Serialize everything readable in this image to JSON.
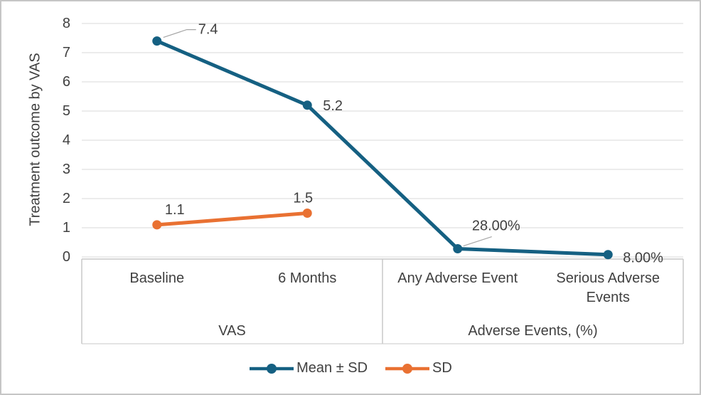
{
  "figure": {
    "background": "#ffffff",
    "border_color": "#c6c6c6"
  },
  "chart_data": {
    "type": "line",
    "title": "",
    "y_axis": {
      "label": "Treatment outcome by VAS",
      "min": 0,
      "max": 8,
      "tick_interval": 1,
      "ticks": [
        0,
        1,
        2,
        3,
        4,
        5,
        6,
        7,
        8
      ]
    },
    "x_axis": {
      "categories": [
        "Baseline",
        "6 Months",
        "Any Adverse Event",
        "Serious Adverse Events"
      ],
      "groups": [
        {
          "label": "VAS",
          "span": [
            0,
            1
          ]
        },
        {
          "label": "Adverse Events, (%)",
          "span": [
            2,
            3
          ]
        }
      ]
    },
    "series": [
      {
        "name": "Mean ± SD",
        "color": "#156082",
        "values": [
          7.4,
          5.2,
          0.28,
          0.08
        ],
        "point_labels": [
          "7.4",
          "5.2",
          "28.00%",
          "8.00%"
        ]
      },
      {
        "name": "SD",
        "color": "#E97132",
        "values": [
          1.1,
          1.5,
          null,
          null
        ],
        "point_labels": [
          "1.1",
          "1.5",
          null,
          null
        ]
      }
    ],
    "grid": "horizontal",
    "gridline_color": "#d9d9d9",
    "axis_box_color": "#c9c9c9",
    "leader_line_color": "#a6a6a6",
    "text_color": "#404040",
    "legend_position": "bottom"
  }
}
